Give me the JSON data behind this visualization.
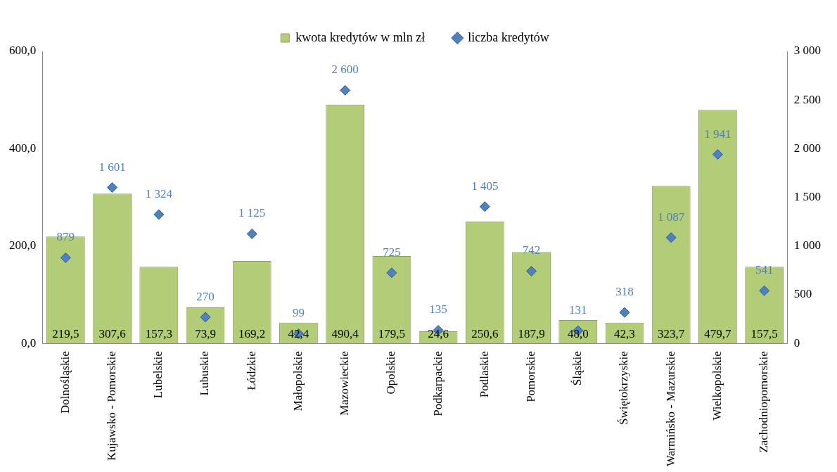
{
  "chart_data": {
    "type": "bar",
    "categories": [
      "Dolnośląskie",
      "Kujawsko - Pomorskie",
      "Lubelskie",
      "Lubuskie",
      "Łódzkie",
      "Małopolskie",
      "Mazowieckie",
      "Opolskie",
      "Podkarpackie",
      "Podlaskie",
      "Pomorskie",
      "Śląskie",
      "Świętokrzyskie",
      "Warmińsko - Mazurskie",
      "Wielkopolskie",
      "Zachodniopomorskie"
    ],
    "series": [
      {
        "name": "kwota kredytów w mln zł",
        "color": "#b3cc78",
        "values": [
          219.5,
          307.6,
          157.3,
          73.9,
          169.2,
          42.4,
          490.4,
          179.5,
          24.6,
          250.6,
          187.9,
          48.0,
          42.3,
          323.7,
          479.7,
          157.5
        ],
        "value_labels": [
          "219,5",
          "307,6",
          "157,3",
          "73,9",
          "169,2",
          "42,4",
          "490,4",
          "179,5",
          "24,6",
          "250,6",
          "187,9",
          "48,0",
          "42,3",
          "323,7",
          "479,7",
          "157,5"
        ]
      },
      {
        "name": "liczba kredytów",
        "type": "scatter",
        "axis": "y2",
        "color": "#4f81bd",
        "x": [
          "Dolnośląskie",
          "Kujawsko - Pomorskie",
          "Lubelskie",
          "Lubuskie",
          "Łódzkie",
          "Małopolskie",
          "Mazowieckie",
          "Opolskie",
          "Podkarpackie",
          "Podlaskie",
          "Pomorskie",
          "Śląskie",
          "Świętokrzyskie",
          "Warmińsko - Mazurskie",
          "Wielkopolskie",
          "Zachodniopomorskie"
        ],
        "values": [
          879,
          1601,
          1324,
          270,
          1125,
          99,
          2600,
          725,
          135,
          1405,
          742,
          131,
          318,
          1087,
          1941,
          541
        ],
        "value_labels": [
          "879",
          "1 601",
          "1 324",
          "270",
          "1 125",
          "99",
          "2 600",
          "725",
          "135",
          "1 405",
          "742",
          "131",
          "318",
          "1 087",
          "1 941",
          "541"
        ]
      }
    ],
    "ylim": [
      0,
      600
    ],
    "yticks": [
      {
        "value": 0,
        "label": "0,0"
      },
      {
        "value": 200,
        "label": "200,0"
      },
      {
        "value": 400,
        "label": "400,0"
      },
      {
        "value": 600,
        "label": "600,0"
      }
    ],
    "y2lim": [
      0,
      3000
    ],
    "y2ticks": [
      0,
      500,
      {
        "value": 1000,
        "label": "1 000"
      },
      {
        "value": 1500,
        "label": "1 500"
      },
      {
        "value": 2000,
        "label": "2 000"
      },
      {
        "value": 2500,
        "label": "2 500"
      },
      {
        "value": 3000,
        "label": "3 000"
      }
    ],
    "marker": "diamond",
    "grid": false,
    "legend": "top"
  }
}
